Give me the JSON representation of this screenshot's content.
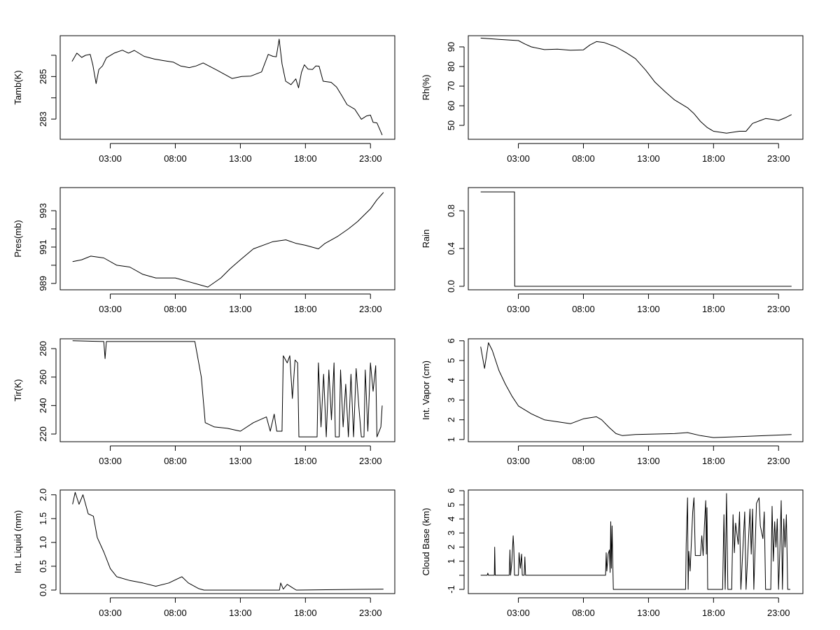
{
  "x_axis": {
    "range_hours": [
      -0.85,
      24.87
    ],
    "ticks": [
      3,
      8,
      13,
      18,
      23
    ],
    "tick_labels": [
      "03:00",
      "08:00",
      "13:00",
      "18:00",
      "23:00"
    ]
  },
  "chart_data": [
    {
      "type": "line",
      "ylabel": "Tamb(K)",
      "ylim": [
        282.05,
        286.92
      ],
      "yticks": [
        283,
        284,
        285,
        286
      ],
      "ytick_labels": [
        "283",
        "",
        "285",
        ""
      ],
      "points": [
        [
          0.06,
          285.71
        ],
        [
          0.43,
          286.1
        ],
        [
          0.8,
          285.9
        ],
        [
          1.1,
          286.0
        ],
        [
          1.46,
          286.04
        ],
        [
          1.66,
          285.55
        ],
        [
          1.91,
          284.67
        ],
        [
          2.12,
          285.33
        ],
        [
          2.4,
          285.5
        ],
        [
          2.7,
          285.88
        ],
        [
          3.3,
          286.1
        ],
        [
          3.93,
          286.24
        ],
        [
          4.4,
          286.1
        ],
        [
          4.85,
          286.23
        ],
        [
          5.6,
          285.95
        ],
        [
          6.4,
          285.82
        ],
        [
          7.1,
          285.75
        ],
        [
          7.84,
          285.68
        ],
        [
          8.4,
          285.5
        ],
        [
          9.07,
          285.42
        ],
        [
          9.6,
          285.5
        ],
        [
          10.14,
          285.64
        ],
        [
          11.2,
          285.3
        ],
        [
          12.36,
          284.91
        ],
        [
          13.1,
          285.0
        ],
        [
          13.8,
          285.02
        ],
        [
          14.63,
          285.22
        ],
        [
          15.14,
          286.04
        ],
        [
          15.5,
          285.95
        ],
        [
          15.76,
          285.93
        ],
        [
          15.98,
          286.76
        ],
        [
          16.2,
          285.6
        ],
        [
          16.48,
          284.78
        ],
        [
          16.89,
          284.62
        ],
        [
          17.26,
          284.89
        ],
        [
          17.47,
          284.47
        ],
        [
          17.7,
          285.2
        ],
        [
          17.92,
          285.55
        ],
        [
          18.2,
          285.35
        ],
        [
          18.54,
          285.33
        ],
        [
          18.8,
          285.5
        ],
        [
          19.05,
          285.49
        ],
        [
          19.36,
          284.78
        ],
        [
          19.98,
          284.73
        ],
        [
          20.39,
          284.51
        ],
        [
          20.8,
          284.1
        ],
        [
          21.2,
          283.68
        ],
        [
          21.8,
          283.46
        ],
        [
          22.3,
          282.99
        ],
        [
          22.7,
          283.15
        ],
        [
          23.0,
          283.19
        ],
        [
          23.2,
          282.85
        ],
        [
          23.5,
          282.82
        ],
        [
          23.9,
          282.25
        ]
      ]
    },
    {
      "type": "line",
      "ylabel": "Rh(%)",
      "ylim": [
        42.9,
        95.7
      ],
      "yticks": [
        50,
        60,
        70,
        80,
        90
      ],
      "ytick_labels": [
        "50",
        "60",
        "70",
        "80",
        "90"
      ],
      "points": [
        [
          0.1,
          94.5
        ],
        [
          1.5,
          93.8
        ],
        [
          3,
          93.2
        ],
        [
          3.5,
          91.5
        ],
        [
          4,
          90
        ],
        [
          5,
          88.6
        ],
        [
          6,
          88.8
        ],
        [
          7,
          88.3
        ],
        [
          8,
          88.5
        ],
        [
          8.5,
          91
        ],
        [
          9,
          92.7
        ],
        [
          9.6,
          92.2
        ],
        [
          10.5,
          90
        ],
        [
          11.3,
          87
        ],
        [
          12,
          84
        ],
        [
          12.8,
          78
        ],
        [
          13.5,
          72
        ],
        [
          14.3,
          67
        ],
        [
          15,
          63
        ],
        [
          16,
          59
        ],
        [
          16.5,
          56
        ],
        [
          17,
          52
        ],
        [
          17.5,
          49
        ],
        [
          18,
          47
        ],
        [
          19,
          46
        ],
        [
          20,
          47
        ],
        [
          20.5,
          47
        ],
        [
          21,
          51
        ],
        [
          21.6,
          52.5
        ],
        [
          22,
          53.5
        ],
        [
          22.6,
          53
        ],
        [
          23,
          52.5
        ],
        [
          23.5,
          53.8
        ],
        [
          24,
          55.5
        ]
      ]
    },
    {
      "type": "line",
      "ylabel": "Pres(mb)",
      "ylim": [
        988.65,
        994.27
      ],
      "yticks": [
        989,
        990,
        991,
        992,
        993
      ],
      "ytick_labels": [
        "989",
        "",
        "991",
        "",
        "993"
      ],
      "points": [
        [
          0.1,
          990.2
        ],
        [
          0.8,
          990.3
        ],
        [
          1.5,
          990.5
        ],
        [
          2.5,
          990.4
        ],
        [
          3.5,
          990.0
        ],
        [
          4.5,
          989.9
        ],
        [
          5.5,
          989.5
        ],
        [
          6.5,
          989.3
        ],
        [
          8,
          989.3
        ],
        [
          9,
          989.1
        ],
        [
          10,
          988.9
        ],
        [
          10.5,
          988.8
        ],
        [
          11.5,
          989.3
        ],
        [
          12.2,
          989.8
        ],
        [
          13,
          990.3
        ],
        [
          14,
          990.9
        ],
        [
          15.5,
          991.3
        ],
        [
          16.5,
          991.4
        ],
        [
          17.3,
          991.2
        ],
        [
          18,
          991.1
        ],
        [
          19,
          990.9
        ],
        [
          19.5,
          991.2
        ],
        [
          20.5,
          991.6
        ],
        [
          21.3,
          992.0
        ],
        [
          22,
          992.4
        ],
        [
          23,
          993.1
        ],
        [
          23.5,
          993.6
        ],
        [
          24,
          994.0
        ]
      ]
    },
    {
      "type": "line",
      "ylabel": "Rain",
      "ylim": [
        -0.037,
        1.045
      ],
      "yticks": [
        0.0,
        0.4,
        0.8
      ],
      "ytick_labels": [
        "0.0",
        "0.4",
        "0.8"
      ],
      "points": [
        [
          0.1,
          1.0
        ],
        [
          2.7,
          1.0
        ],
        [
          2.72,
          0.0
        ],
        [
          24.0,
          0.0
        ]
      ]
    },
    {
      "type": "line",
      "ylabel": "Tir(K)",
      "ylim": [
        214.6,
        286.9
      ],
      "yticks": [
        220,
        240,
        260,
        280
      ],
      "ytick_labels": [
        "220",
        "240",
        "260",
        "280"
      ],
      "points": [
        [
          0.1,
          285.5
        ],
        [
          2.5,
          285
        ],
        [
          2.6,
          273
        ],
        [
          2.7,
          285
        ],
        [
          9.5,
          285
        ],
        [
          9.6,
          280
        ],
        [
          10.0,
          260
        ],
        [
          10.3,
          228
        ],
        [
          11,
          225
        ],
        [
          12,
          224
        ],
        [
          13,
          222
        ],
        [
          14,
          228
        ],
        [
          15,
          232
        ],
        [
          15.3,
          222
        ],
        [
          15.6,
          234
        ],
        [
          15.8,
          222
        ],
        [
          16.2,
          222
        ],
        [
          16.3,
          275
        ],
        [
          16.6,
          270
        ],
        [
          16.8,
          275
        ],
        [
          17.0,
          245
        ],
        [
          17.2,
          272
        ],
        [
          17.4,
          270
        ],
        [
          17.5,
          218
        ],
        [
          18.9,
          218
        ],
        [
          19.0,
          270
        ],
        [
          19.2,
          225
        ],
        [
          19.4,
          262
        ],
        [
          19.6,
          218
        ],
        [
          19.8,
          265
        ],
        [
          20.0,
          230
        ],
        [
          20.2,
          270
        ],
        [
          20.3,
          218
        ],
        [
          20.6,
          218
        ],
        [
          20.7,
          265
        ],
        [
          20.9,
          225
        ],
        [
          21.1,
          255
        ],
        [
          21.3,
          218
        ],
        [
          21.5,
          262
        ],
        [
          21.7,
          218
        ],
        [
          21.9,
          266
        ],
        [
          22.1,
          240
        ],
        [
          22.3,
          218
        ],
        [
          22.5,
          218
        ],
        [
          22.6,
          265
        ],
        [
          22.8,
          222
        ],
        [
          23.0,
          270
        ],
        [
          23.2,
          250
        ],
        [
          23.4,
          268
        ],
        [
          23.5,
          218
        ],
        [
          23.8,
          225
        ],
        [
          23.9,
          240
        ]
      ]
    },
    {
      "type": "line",
      "ylabel": "Int. Vapor (cm)",
      "ylim": [
        0.89,
        6.1
      ],
      "yticks": [
        1,
        2,
        3,
        4,
        5,
        6
      ],
      "ytick_labels": [
        "1",
        "2",
        "3",
        "4",
        "5",
        "6"
      ],
      "points": [
        [
          0.1,
          5.7
        ],
        [
          0.4,
          4.6
        ],
        [
          0.7,
          5.9
        ],
        [
          1.0,
          5.5
        ],
        [
          1.5,
          4.5
        ],
        [
          2.0,
          3.8
        ],
        [
          2.5,
          3.2
        ],
        [
          3,
          2.7
        ],
        [
          4,
          2.3
        ],
        [
          5,
          2.0
        ],
        [
          6,
          1.9
        ],
        [
          7,
          1.8
        ],
        [
          8,
          2.05
        ],
        [
          9.0,
          2.15
        ],
        [
          9.4,
          2.0
        ],
        [
          10,
          1.6
        ],
        [
          10.5,
          1.3
        ],
        [
          11,
          1.2
        ],
        [
          12,
          1.25
        ],
        [
          15,
          1.3
        ],
        [
          16,
          1.35
        ],
        [
          17,
          1.2
        ],
        [
          18,
          1.1
        ],
        [
          20,
          1.15
        ],
        [
          22,
          1.2
        ],
        [
          24,
          1.25
        ]
      ]
    },
    {
      "type": "line",
      "ylabel": "Int. Liquid (mm)",
      "ylim": [
        -0.074,
        2.1
      ],
      "yticks": [
        0.0,
        0.5,
        1.0,
        1.5,
        2.0
      ],
      "ytick_labels": [
        "0.0",
        "0.5",
        "1.0",
        "1.5",
        "2.0"
      ],
      "points": [
        [
          0.1,
          1.8
        ],
        [
          0.3,
          2.05
        ],
        [
          0.6,
          1.8
        ],
        [
          0.9,
          2.0
        ],
        [
          1.3,
          1.6
        ],
        [
          1.7,
          1.55
        ],
        [
          2.0,
          1.1
        ],
        [
          2.5,
          0.8
        ],
        [
          3.0,
          0.45
        ],
        [
          3.5,
          0.28
        ],
        [
          4.5,
          0.2
        ],
        [
          5.5,
          0.15
        ],
        [
          6.5,
          0.08
        ],
        [
          7.5,
          0.15
        ],
        [
          8.5,
          0.28
        ],
        [
          9,
          0.15
        ],
        [
          9.8,
          0.03
        ],
        [
          10.2,
          0
        ],
        [
          16,
          0
        ],
        [
          16.1,
          0.15
        ],
        [
          16.3,
          0.02
        ],
        [
          16.6,
          0.12
        ],
        [
          17,
          0.05
        ],
        [
          17.3,
          0
        ],
        [
          24,
          0.02
        ]
      ]
    },
    {
      "type": "line",
      "ylabel": "Cloud Base (km)",
      "ylim": [
        -1.3,
        6.05
      ],
      "yticks": [
        -1,
        0,
        1,
        2,
        3,
        4,
        5,
        6
      ],
      "ytick_labels": [
        "-1",
        "",
        "1",
        "2",
        "3",
        "4",
        "5",
        "6"
      ],
      "points": [
        [
          0.1,
          0
        ],
        [
          0.6,
          0
        ],
        [
          0.65,
          0.15
        ],
        [
          0.7,
          0
        ],
        [
          1.15,
          0
        ],
        [
          1.18,
          2.0
        ],
        [
          1.22,
          0
        ],
        [
          2.3,
          0
        ],
        [
          2.35,
          1.8
        ],
        [
          2.4,
          0
        ],
        [
          2.5,
          1.0
        ],
        [
          2.6,
          2.8
        ],
        [
          2.65,
          2.0
        ],
        [
          2.7,
          0
        ],
        [
          3.0,
          0
        ],
        [
          3.05,
          1.6
        ],
        [
          3.15,
          0.5
        ],
        [
          3.25,
          1.5
        ],
        [
          3.3,
          0
        ],
        [
          3.45,
          0
        ],
        [
          3.5,
          1.3
        ],
        [
          3.55,
          0
        ],
        [
          9.7,
          0
        ],
        [
          9.75,
          1.6
        ],
        [
          9.8,
          0.3
        ],
        [
          9.9,
          1.5
        ],
        [
          10.0,
          1.8
        ],
        [
          10.05,
          0.2
        ],
        [
          10.1,
          3.8
        ],
        [
          10.15,
          0.5
        ],
        [
          10.2,
          3.5
        ],
        [
          10.25,
          1.2
        ],
        [
          10.3,
          -1
        ],
        [
          15.85,
          -1
        ],
        [
          15.9,
          2.2
        ],
        [
          16.0,
          5.5
        ],
        [
          16.05,
          -1
        ],
        [
          16.1,
          1.7
        ],
        [
          16.2,
          0.3
        ],
        [
          16.4,
          4.5
        ],
        [
          16.5,
          5.5
        ],
        [
          16.6,
          1.4
        ],
        [
          17.0,
          1.4
        ],
        [
          17.1,
          2.8
        ],
        [
          17.2,
          1.4
        ],
        [
          17.3,
          3.5
        ],
        [
          17.4,
          5.3
        ],
        [
          17.45,
          1.5
        ],
        [
          17.5,
          4.8
        ],
        [
          17.55,
          -1
        ],
        [
          18.7,
          -1
        ],
        [
          18.8,
          4.3
        ],
        [
          18.9,
          -1
        ],
        [
          19.0,
          5.8
        ],
        [
          19.1,
          -1
        ],
        [
          19.4,
          -1
        ],
        [
          19.5,
          4.3
        ],
        [
          19.6,
          1.6
        ],
        [
          19.7,
          3.7
        ],
        [
          19.9,
          2.2
        ],
        [
          20.0,
          4.5
        ],
        [
          20.1,
          -1
        ],
        [
          20.4,
          4.5
        ],
        [
          20.5,
          -1
        ],
        [
          20.8,
          4.7
        ],
        [
          20.9,
          1.5
        ],
        [
          21.0,
          4.7
        ],
        [
          21.1,
          -1
        ],
        [
          21.3,
          5.1
        ],
        [
          21.5,
          5.5
        ],
        [
          21.6,
          3.5
        ],
        [
          21.8,
          2.6
        ],
        [
          21.9,
          4.5
        ],
        [
          22.0,
          -1
        ],
        [
          22.4,
          -1
        ],
        [
          22.5,
          4.9
        ],
        [
          22.6,
          1.0
        ],
        [
          22.7,
          3.8
        ],
        [
          22.8,
          2.0
        ],
        [
          22.9,
          4.0
        ],
        [
          23.0,
          -1
        ],
        [
          23.1,
          1.8
        ],
        [
          23.2,
          5.3
        ],
        [
          23.3,
          -1
        ],
        [
          23.4,
          4.0
        ],
        [
          23.5,
          2.0
        ],
        [
          23.6,
          4.3
        ],
        [
          23.7,
          -1
        ],
        [
          23.9,
          -1
        ]
      ]
    }
  ]
}
